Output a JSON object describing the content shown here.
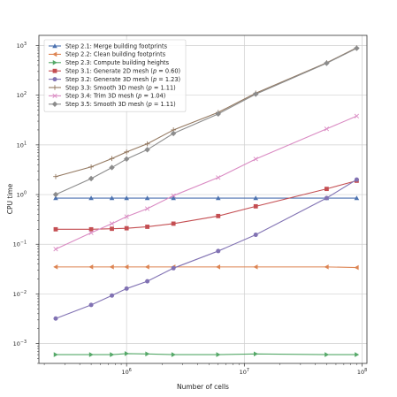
{
  "chart_data": {
    "type": "line",
    "xlabel": "Number of cells",
    "ylabel": "CPU time",
    "xscale": "log",
    "yscale": "log",
    "xlim": [
      180000,
      110000000
    ],
    "ylim": [
      0.0004,
      1600
    ],
    "grid": true,
    "legend_position": "top-left",
    "x_ticks": [
      {
        "value": 1000000,
        "base": "10",
        "exp": "6"
      },
      {
        "value": 10000000,
        "base": "10",
        "exp": "7"
      },
      {
        "value": 100000000,
        "base": "10",
        "exp": "8"
      }
    ],
    "y_ticks": [
      {
        "value": 0.001,
        "base": "10",
        "exp": "−3"
      },
      {
        "value": 0.01,
        "base": "10",
        "exp": "−2"
      },
      {
        "value": 0.1,
        "base": "10",
        "exp": "−1"
      },
      {
        "value": 1,
        "base": "10",
        "exp": "0"
      },
      {
        "value": 10,
        "base": "10",
        "exp": "1"
      },
      {
        "value": 100,
        "base": "10",
        "exp": "2"
      },
      {
        "value": 1000,
        "base": "10",
        "exp": "3"
      }
    ],
    "x": [
      250000,
      500000,
      750000,
      1000000,
      1500000,
      2500000,
      6000000,
      12500000,
      50000000,
      90000000
    ],
    "series": [
      {
        "name": "Step 2.1: Merge building footprints",
        "label_parts": [
          "Step 2.1: Merge building footprints"
        ],
        "color": "#4c72b0",
        "marker": "triangle-up",
        "values": [
          0.85,
          0.85,
          0.85,
          0.85,
          0.85,
          0.85,
          0.85,
          0.85,
          0.85,
          0.85
        ]
      },
      {
        "name": "Step 2.2: Clean building footprints",
        "label_parts": [
          "Step 2.2: Clean building footprints"
        ],
        "color": "#dd8452",
        "marker": "triangle-left",
        "values": [
          0.035,
          0.035,
          0.035,
          0.035,
          0.035,
          0.035,
          0.035,
          0.035,
          0.035,
          0.034
        ]
      },
      {
        "name": "Step 2.3: Compute building heights",
        "label_parts": [
          "Step 2.3: Compute building heights"
        ],
        "color": "#55a868",
        "marker": "triangle-right",
        "values": [
          0.0006,
          0.0006,
          0.0006,
          0.00063,
          0.00062,
          0.0006,
          0.0006,
          0.00062,
          0.0006,
          0.0006
        ]
      },
      {
        "name": "Step 3.1: Generate 2D mesh (p = 0.60)",
        "label_parts": [
          "Step 3.1: Generate 2D mesh (",
          "p",
          " = 0.60)"
        ],
        "color": "#c44e52",
        "marker": "square",
        "values": [
          0.2,
          0.2,
          0.205,
          0.21,
          0.225,
          0.26,
          0.37,
          0.58,
          1.3,
          1.9
        ]
      },
      {
        "name": "Step 3.2: Generate 3D mesh (p = 1.23)",
        "label_parts": [
          "Step 3.2: Generate 3D mesh (",
          "p",
          " = 1.23)"
        ],
        "color": "#8172b3",
        "marker": "circle",
        "values": [
          0.0032,
          0.006,
          0.0093,
          0.0128,
          0.018,
          0.033,
          0.073,
          0.155,
          0.85,
          2.0
        ]
      },
      {
        "name": "Step 3.3: Smooth 3D mesh (p = 1.11)",
        "label_parts": [
          "Step 3.3: Smooth 3D mesh (",
          "p",
          " = 1.11)"
        ],
        "color": "#937860",
        "marker": "plus",
        "values": [
          2.3,
          3.6,
          5.3,
          7.2,
          10.5,
          20,
          45,
          110,
          450,
          900
        ]
      },
      {
        "name": "Step 3.4: Trim 3D mesh (p = 1.04)",
        "label_parts": [
          "Step 3.4: Trim 3D mesh (",
          "p",
          " = 1.04)"
        ],
        "color": "#da8bc3",
        "marker": "x",
        "values": [
          0.08,
          0.17,
          0.26,
          0.36,
          0.52,
          0.95,
          2.2,
          5.2,
          21,
          38
        ]
      },
      {
        "name": "Step 3.5: Smooth 3D mesh (p = 1.11)",
        "label_parts": [
          "Step 3.5: Smooth 3D mesh (",
          "p",
          " = 1.11)"
        ],
        "color": "#8c8c8c",
        "marker": "diamond",
        "values": [
          1.0,
          2.1,
          3.5,
          5.2,
          8.0,
          17,
          42,
          105,
          440,
          880
        ]
      }
    ]
  }
}
